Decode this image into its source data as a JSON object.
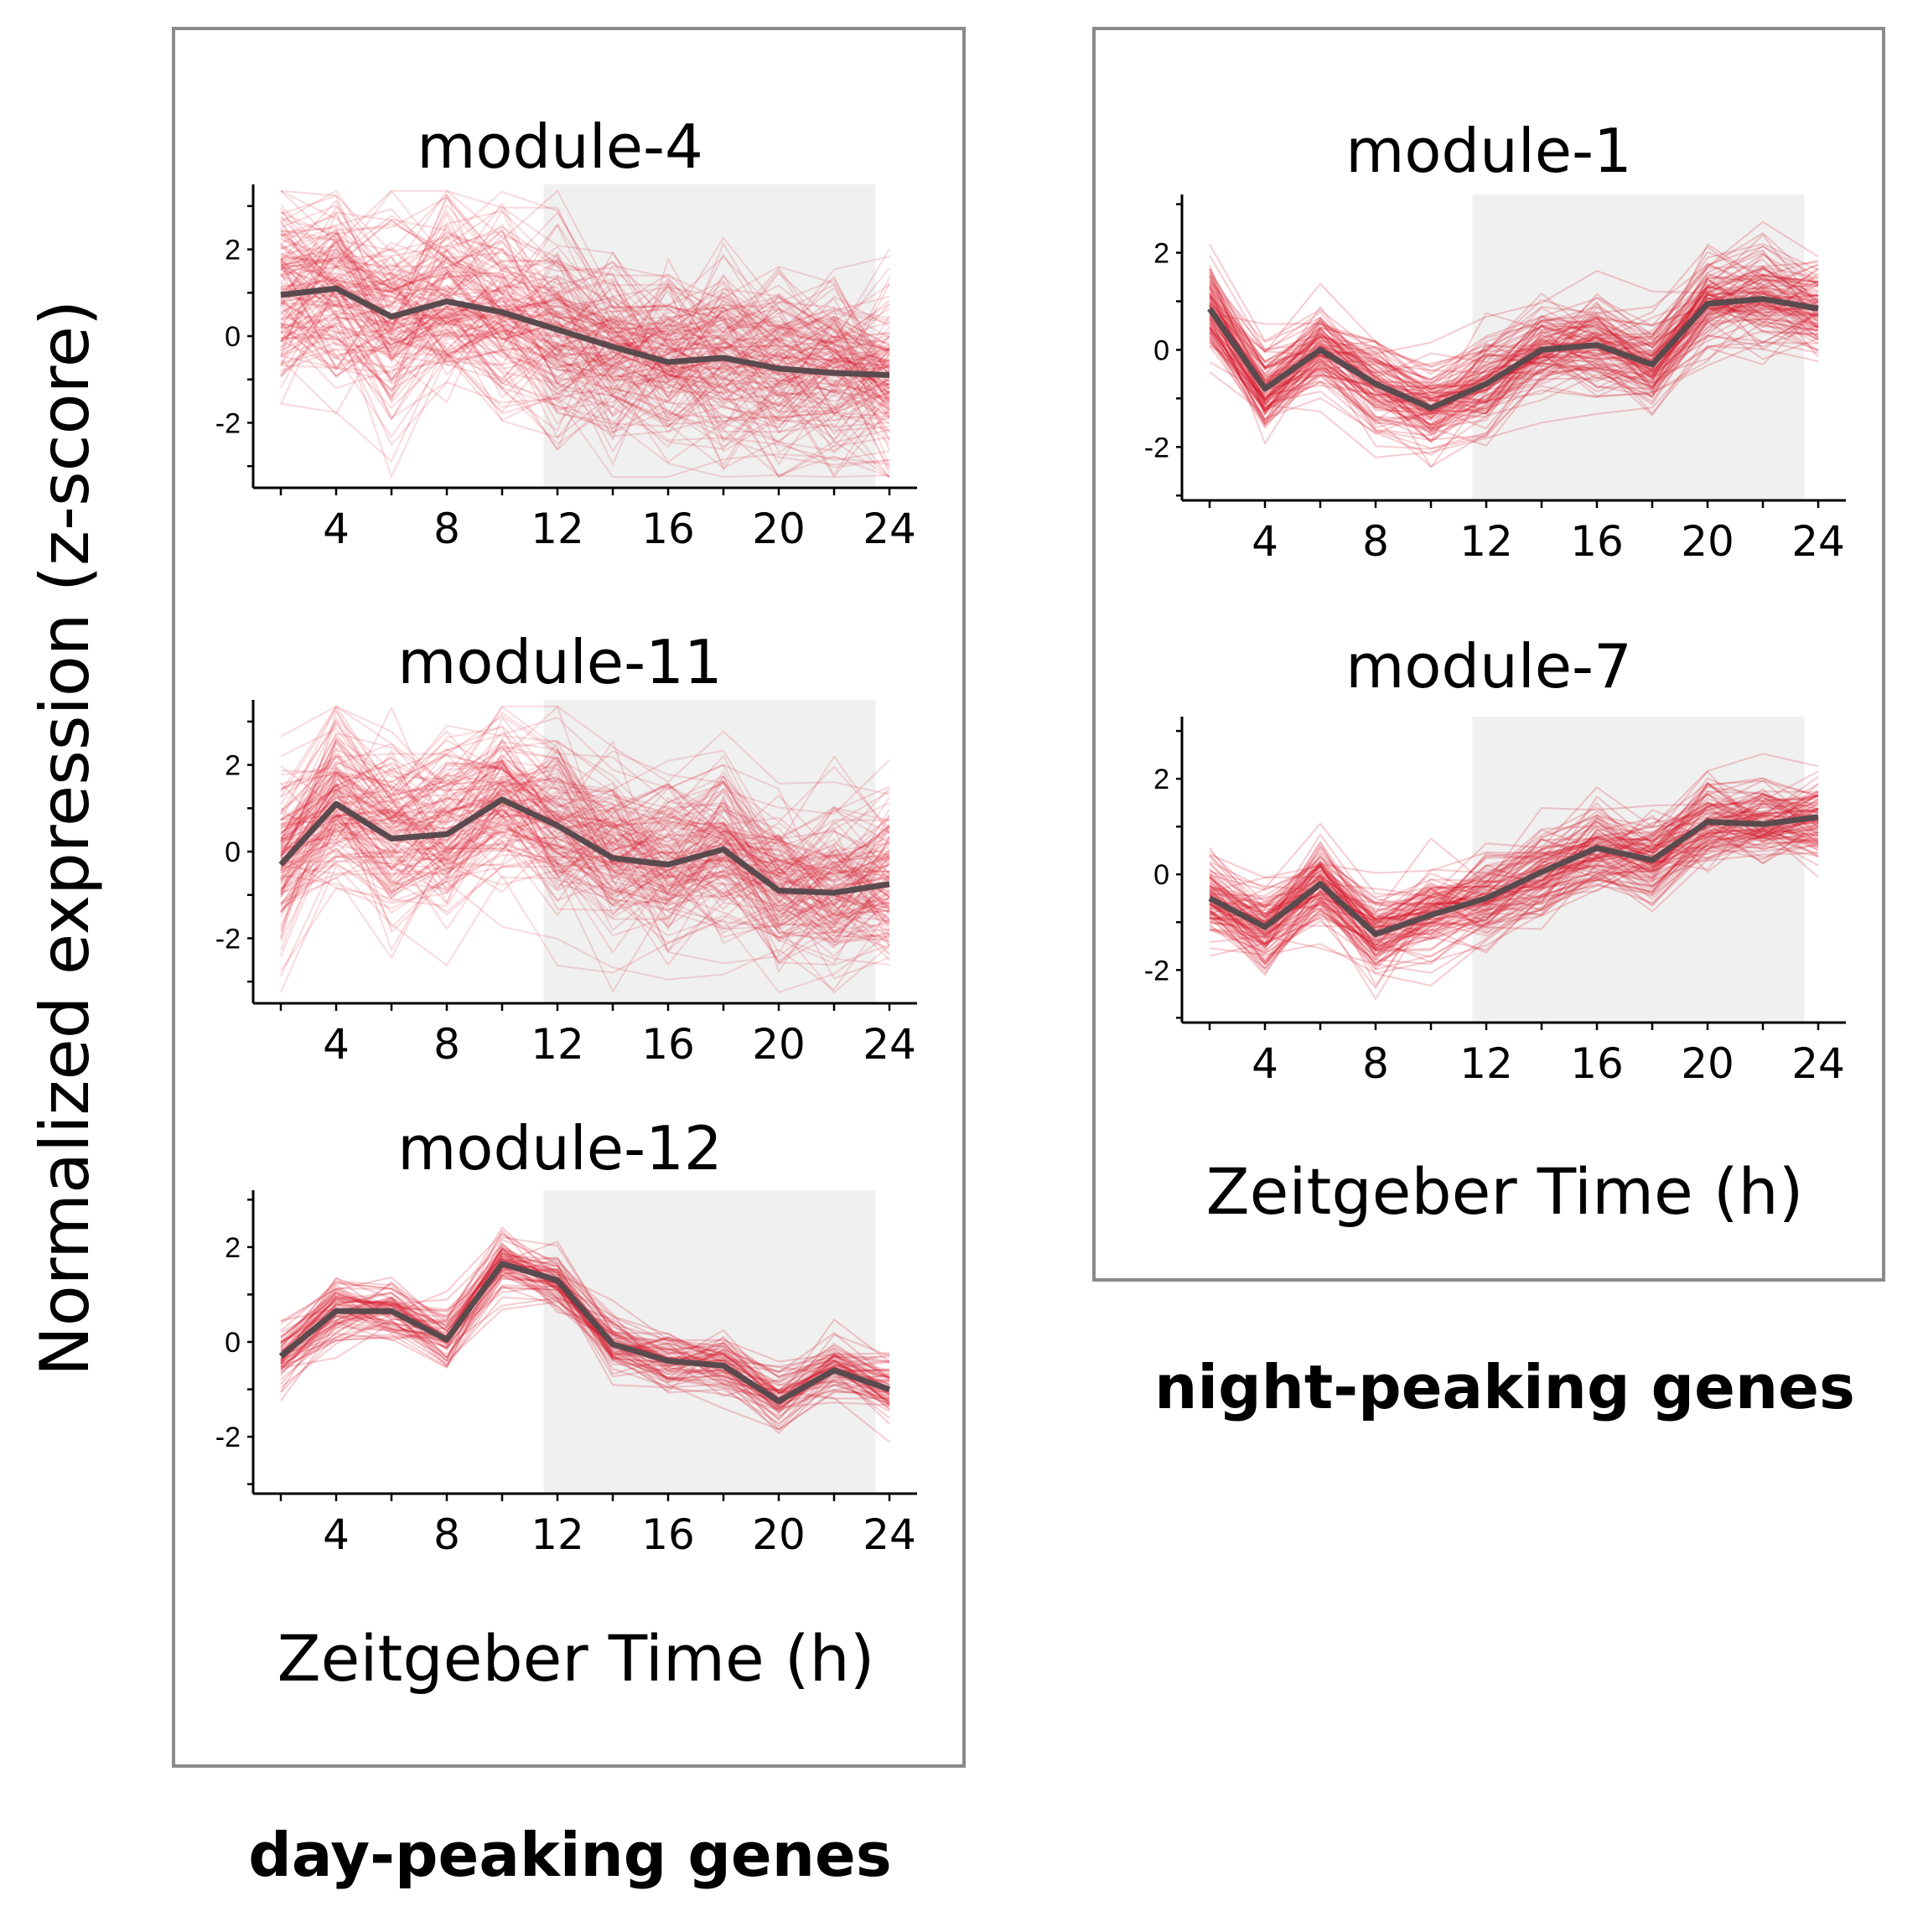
{
  "figure": {
    "ylabel": "Normalized expression (z-score)",
    "groups": [
      {
        "label": "day-peaking genes",
        "xlabel": "Zeitgeber Time (h)"
      },
      {
        "label": "night-peaking genes",
        "xlabel": "Zeitgeber Time (h)"
      }
    ],
    "colors": {
      "genes": "#d7192a",
      "mean": "#5a4a4e",
      "night_shade": "#f0f0f0",
      "box": "#8a8a8a"
    }
  },
  "chart_data": [
    {
      "type": "line",
      "group": "day-peaking genes",
      "title": "module-4",
      "x": [
        2,
        4,
        6,
        8,
        10,
        12,
        14,
        16,
        18,
        20,
        22,
        24
      ],
      "xticks": [
        "4",
        "8",
        "12",
        "16",
        "20",
        "24"
      ],
      "yticks": [
        "2",
        "0",
        "-2"
      ],
      "xlim": [
        1,
        25
      ],
      "ylim": [
        -3.5,
        3.5
      ],
      "night_shading": [
        11.5,
        23.5
      ],
      "series": [
        {
          "values": [
            0.95,
            1.1,
            0.45,
            0.8,
            0.55,
            0.15,
            -0.25,
            -0.6,
            -0.5,
            -0.75,
            -0.85,
            -0.9
          ]
        }
      ],
      "spread": 1.3,
      "line_count": 160
    },
    {
      "type": "line",
      "group": "day-peaking genes",
      "title": "module-11",
      "x": [
        2,
        4,
        6,
        8,
        10,
        12,
        14,
        16,
        18,
        20,
        22,
        24
      ],
      "xticks": [
        "4",
        "8",
        "12",
        "16",
        "20",
        "24"
      ],
      "yticks": [
        "2",
        "0",
        "-2"
      ],
      "xlim": [
        1,
        25
      ],
      "ylim": [
        -3.5,
        3.5
      ],
      "night_shading": [
        11.5,
        23.5
      ],
      "series": [
        {
          "values": [
            -0.3,
            1.1,
            0.3,
            0.4,
            1.2,
            0.6,
            -0.15,
            -0.3,
            0.05,
            -0.9,
            -0.95,
            -0.75
          ]
        }
      ],
      "spread": 1.2,
      "line_count": 150
    },
    {
      "type": "line",
      "group": "day-peaking genes",
      "title": "module-12",
      "x": [
        2,
        4,
        6,
        8,
        10,
        12,
        14,
        16,
        18,
        20,
        22,
        24
      ],
      "xticks": [
        "4",
        "8",
        "12",
        "16",
        "20",
        "24"
      ],
      "yticks": [
        "2",
        "0",
        "-2"
      ],
      "xlim": [
        1,
        25
      ],
      "ylim": [
        -3.2,
        3.2
      ],
      "night_shading": [
        11.5,
        23.5
      ],
      "series": [
        {
          "values": [
            -0.3,
            0.65,
            0.65,
            0.05,
            1.65,
            1.3,
            -0.05,
            -0.4,
            -0.5,
            -1.25,
            -0.6,
            -1.0
          ]
        }
      ],
      "spread": 0.45,
      "line_count": 70
    },
    {
      "type": "line",
      "group": "night-peaking genes",
      "title": "module-1",
      "x": [
        2,
        4,
        6,
        8,
        10,
        12,
        14,
        16,
        18,
        20,
        22,
        24
      ],
      "xticks": [
        "4",
        "8",
        "12",
        "16",
        "20",
        "24"
      ],
      "yticks": [
        "2",
        "0",
        "-2"
      ],
      "xlim": [
        1,
        25
      ],
      "ylim": [
        -3.1,
        3.2
      ],
      "night_shading": [
        11.5,
        23.5
      ],
      "series": [
        {
          "values": [
            0.85,
            -0.8,
            0.0,
            -0.7,
            -1.2,
            -0.7,
            0.0,
            0.1,
            -0.3,
            0.95,
            1.05,
            0.85
          ]
        }
      ],
      "spread": 0.6,
      "line_count": 110
    },
    {
      "type": "line",
      "group": "night-peaking genes",
      "title": "module-7",
      "x": [
        2,
        4,
        6,
        8,
        10,
        12,
        14,
        16,
        18,
        20,
        22,
        24
      ],
      "xticks": [
        "4",
        "8",
        "12",
        "16",
        "20",
        "24"
      ],
      "yticks": [
        "2",
        "0",
        "-2"
      ],
      "xlim": [
        1,
        25
      ],
      "ylim": [
        -3.1,
        3.3
      ],
      "night_shading": [
        11.5,
        23.5
      ],
      "series": [
        {
          "values": [
            -0.5,
            -1.1,
            -0.2,
            -1.25,
            -0.85,
            -0.5,
            0.05,
            0.55,
            0.3,
            1.1,
            1.05,
            1.2
          ]
        }
      ],
      "spread": 0.55,
      "line_count": 110
    }
  ]
}
